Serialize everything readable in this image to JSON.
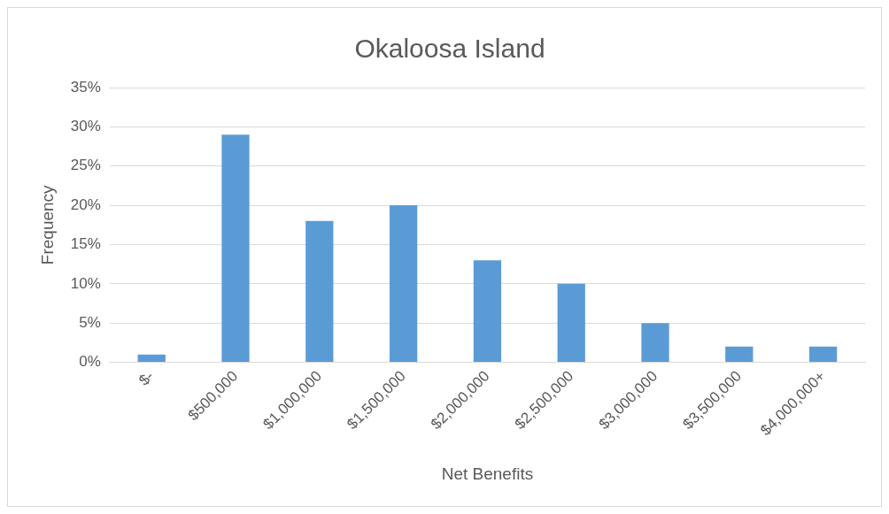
{
  "chart_data": {
    "type": "bar",
    "title": "Okaloosa Island",
    "xlabel": "Net Benefits",
    "ylabel": "Frequency",
    "categories": [
      "$-",
      "$500,000",
      "$1,000,000",
      "$1,500,000",
      "$2,000,000",
      "$2,500,000",
      "$3,000,000",
      "$3,500,000",
      "$4,000,000+"
    ],
    "values": [
      1,
      29,
      18,
      20,
      13,
      10,
      5,
      2,
      2
    ],
    "color": "#5b9bd5",
    "ylim": [
      0,
      35
    ],
    "yticks": [
      {
        "value": 0,
        "label": "0%"
      },
      {
        "value": 5,
        "label": "5%"
      },
      {
        "value": 10,
        "label": "10%"
      },
      {
        "value": 15,
        "label": "15%"
      },
      {
        "value": 20,
        "label": "20%"
      },
      {
        "value": 25,
        "label": "25%"
      },
      {
        "value": 30,
        "label": "30%"
      },
      {
        "value": 35,
        "label": "35%"
      }
    ],
    "grid": "y",
    "legend": false
  }
}
